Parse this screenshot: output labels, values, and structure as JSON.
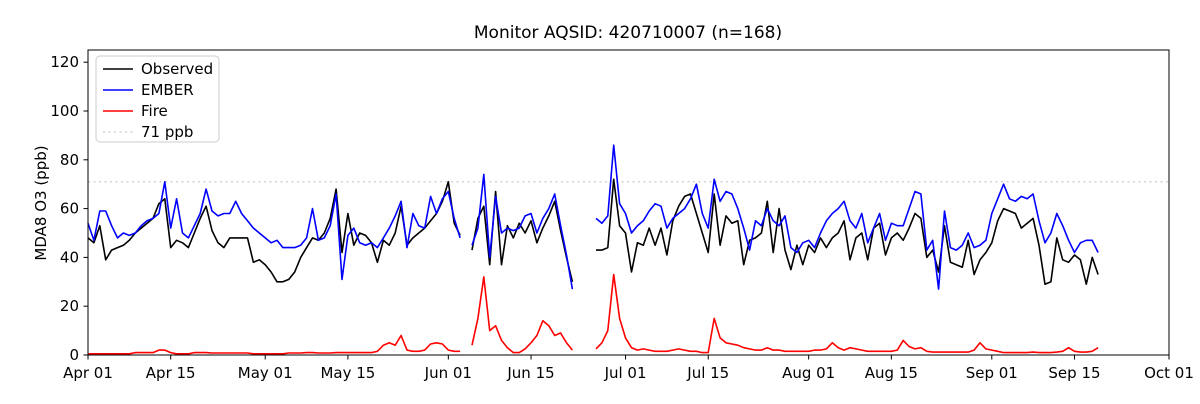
{
  "chart_data": {
    "type": "line",
    "title": "Monitor AQSID: 420710007 (n=168)",
    "xlabel": "",
    "ylabel": "MDA8 O3 (ppb)",
    "ylim": [
      0,
      125
    ],
    "xlim_days": [
      0,
      183
    ],
    "grid": false,
    "legend_position": "upper-left",
    "y_ticks": [
      0,
      20,
      40,
      60,
      80,
      100,
      120
    ],
    "x_tick_days": [
      0,
      14,
      30,
      44,
      61,
      75,
      91,
      105,
      122,
      136,
      153,
      167,
      183
    ],
    "x_tick_labels": [
      "Apr 01",
      "Apr 15",
      "May 01",
      "May 15",
      "Jun 01",
      "Jun 15",
      "Jul 01",
      "Jul 15",
      "Aug 01",
      "Aug 15",
      "Sep 01",
      "Sep 15",
      "Oct 01"
    ],
    "threshold": {
      "label": "71 ppb",
      "value": 71,
      "color": "#d3d3d3",
      "style": "dotted"
    },
    "x_start_label": "Apr 01",
    "x_end_label": "Sep 19",
    "note_missing_days": "values are daily; null = no data",
    "series": [
      {
        "name": "Observed",
        "color": "#000000",
        "values": [
          48,
          46,
          53,
          39,
          43,
          44,
          45,
          47,
          50,
          52,
          54,
          56,
          62,
          64,
          44,
          47,
          46,
          44,
          50,
          56,
          61,
          51,
          46,
          44,
          48,
          48,
          48,
          48,
          38,
          39,
          37,
          34,
          30,
          30,
          31,
          34,
          40,
          44,
          48,
          47,
          50,
          56,
          68,
          42,
          58,
          45,
          50,
          49,
          46,
          38,
          47,
          45,
          50,
          61,
          45,
          48,
          50,
          52,
          55,
          58,
          63,
          71,
          54,
          49,
          null,
          43,
          56,
          61,
          37,
          67,
          37,
          53,
          48,
          54,
          50,
          55,
          46,
          52,
          57,
          63,
          51,
          40,
          30,
          null,
          null,
          null,
          43,
          43,
          44,
          72,
          53,
          50,
          34,
          46,
          45,
          52,
          45,
          52,
          41,
          55,
          61,
          65,
          66,
          58,
          50,
          42,
          66,
          45,
          57,
          54,
          55,
          37,
          47,
          48,
          50,
          63,
          42,
          60,
          43,
          35,
          45,
          37,
          45,
          42,
          48,
          44,
          48,
          50,
          55,
          39,
          48,
          50,
          39,
          52,
          54,
          41,
          48,
          50,
          47,
          52,
          58,
          56,
          40,
          43,
          34,
          53,
          38,
          37,
          36,
          47,
          33,
          39,
          42,
          46,
          55,
          60,
          59,
          58,
          52,
          54,
          56,
          45,
          29,
          30,
          48,
          39,
          38,
          41,
          39,
          29,
          40,
          33
        ]
      },
      {
        "name": "EMBER",
        "color": "#0000ff",
        "values": [
          54,
          47,
          59,
          59,
          53,
          48,
          50,
          49,
          50,
          53,
          55,
          56,
          58,
          71,
          52,
          64,
          50,
          48,
          53,
          58,
          68,
          59,
          57,
          58,
          58,
          63,
          58,
          55,
          52,
          50,
          48,
          46,
          47,
          44,
          44,
          44,
          45,
          48,
          60,
          47,
          48,
          53,
          66,
          31,
          49,
          52,
          46,
          45,
          46,
          44,
          48,
          52,
          57,
          63,
          44,
          58,
          53,
          52,
          65,
          58,
          64,
          67,
          56,
          48,
          null,
          45,
          52,
          74,
          40,
          65,
          50,
          52,
          51,
          52,
          57,
          58,
          50,
          56,
          60,
          66,
          53,
          41,
          27,
          null,
          null,
          null,
          56,
          54,
          57,
          86,
          62,
          58,
          50,
          53,
          55,
          59,
          62,
          61,
          52,
          56,
          58,
          60,
          64,
          70,
          58,
          52,
          72,
          63,
          67,
          66,
          60,
          52,
          43,
          55,
          53,
          60,
          55,
          53,
          57,
          44,
          42,
          46,
          47,
          44,
          50,
          55,
          58,
          60,
          63,
          55,
          52,
          58,
          46,
          52,
          58,
          47,
          54,
          53,
          53,
          60,
          67,
          66,
          43,
          47,
          27,
          59,
          44,
          43,
          45,
          50,
          44,
          45,
          47,
          58,
          64,
          70,
          64,
          63,
          65,
          64,
          66,
          55,
          46,
          50,
          58,
          53,
          47,
          42,
          46,
          47,
          47,
          42
        ]
      },
      {
        "name": "Fire",
        "color": "#ff0000",
        "values": [
          0.5,
          0.5,
          0.5,
          0.5,
          0.5,
          0.5,
          0.5,
          0.5,
          1,
          1,
          1,
          1,
          2,
          2,
          1,
          0.5,
          0.5,
          0.5,
          1,
          1,
          1,
          0.8,
          0.8,
          0.8,
          0.8,
          0.8,
          0.8,
          0.8,
          0.5,
          0.5,
          0.5,
          0.5,
          0.5,
          0.5,
          0.8,
          0.8,
          0.8,
          1,
          1,
          0.8,
          0.8,
          0.8,
          1,
          1,
          1,
          1,
          1,
          1,
          1,
          1.5,
          4,
          5,
          4,
          8,
          2,
          1.5,
          1.5,
          2,
          4.5,
          5,
          4.5,
          2,
          1.5,
          1.5,
          null,
          4,
          15,
          32,
          10,
          12,
          6,
          3,
          1,
          1,
          2.5,
          5,
          8,
          14,
          12,
          8,
          9,
          5,
          2,
          null,
          null,
          null,
          2.5,
          5,
          10,
          33,
          15,
          7,
          3,
          2,
          2.5,
          2,
          1.5,
          1.5,
          1.5,
          2,
          2.5,
          2,
          1.5,
          1.5,
          1,
          1,
          15,
          7,
          5,
          4.5,
          4,
          3,
          2.5,
          2,
          2,
          3,
          2,
          2,
          1.5,
          1.5,
          1.5,
          1.5,
          1.5,
          2,
          2,
          2.5,
          5,
          3,
          2,
          3,
          2.5,
          2,
          1.5,
          1.5,
          1.5,
          1.5,
          1.5,
          2,
          6,
          3.5,
          2.5,
          3,
          1.5,
          1.2,
          1.2,
          1.2,
          1.2,
          1.2,
          1.2,
          1.2,
          2,
          5,
          2.5,
          2,
          1.5,
          1,
          1,
          1,
          1,
          1,
          1.2,
          1,
          1,
          1,
          1.2,
          1.5,
          3,
          1.5,
          1.2,
          1.2,
          1.5,
          3
        ]
      }
    ]
  },
  "colors": {
    "background": "#ffffff",
    "spine": "#000000",
    "observed": "#000000",
    "ember": "#0000ff",
    "fire": "#ff0000",
    "threshold": "#d3d3d3",
    "legend_border": "#cccccc"
  }
}
